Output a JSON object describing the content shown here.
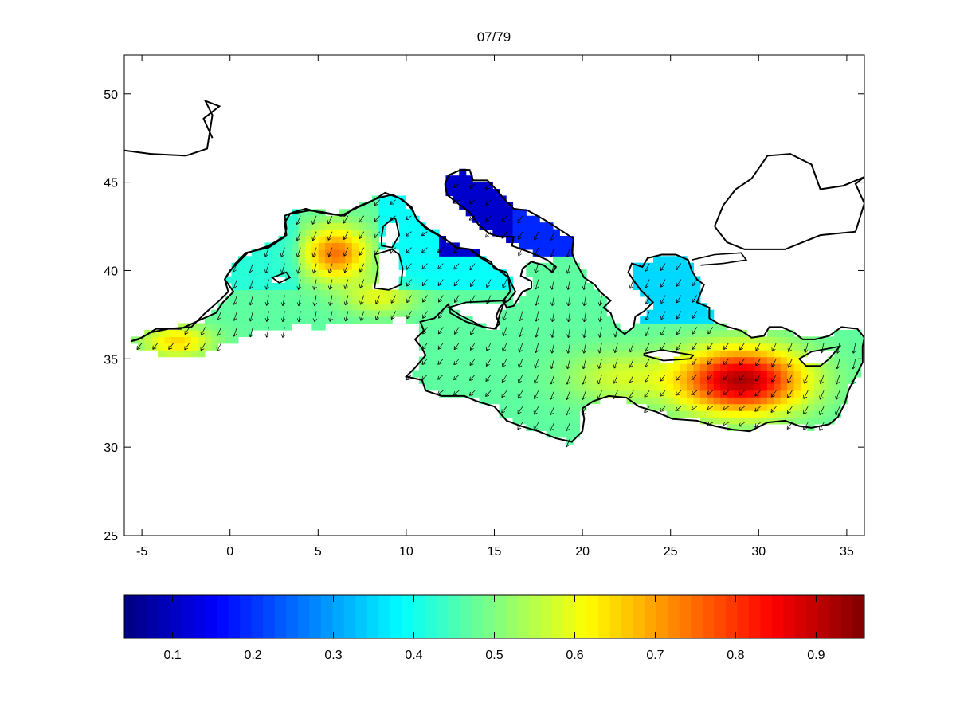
{
  "title": "07/79",
  "map": {
    "region": "Mediterranean Sea",
    "xticks": [
      -5,
      0,
      5,
      10,
      15,
      20,
      25,
      30,
      35
    ],
    "yticks": [
      25,
      30,
      35,
      40,
      45,
      50
    ],
    "xlim": [
      -6,
      36
    ],
    "ylim": [
      25,
      52.2
    ],
    "field": "scalar magnitude (colour) with direction arrows (quiver)",
    "colormap": "jet",
    "coastline_color": "#000000"
  },
  "colorbar": {
    "ticks": [
      0.1,
      0.2,
      0.3,
      0.4,
      0.5,
      0.6,
      0.7,
      0.8,
      0.9
    ],
    "range": [
      0.04,
      0.96
    ],
    "levels": 64,
    "colormap": "jet"
  }
}
